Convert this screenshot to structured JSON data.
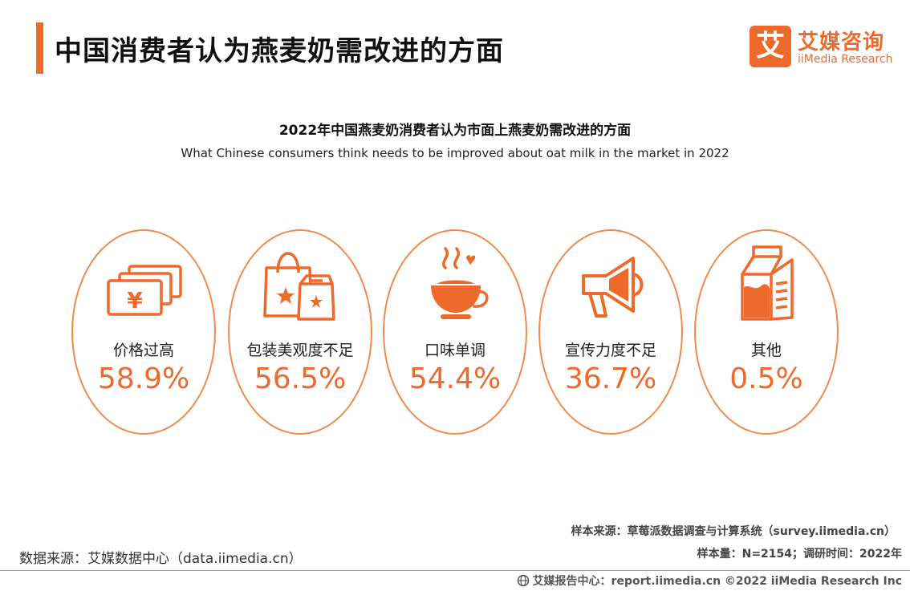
{
  "page_title": "中国消费者认为燕麦奶需改进的方面",
  "logo": {
    "glyph": "艾",
    "name_cn": "艾媒咨询",
    "name_en": "iiMedia Research"
  },
  "colors": {
    "accent": "#ee6a2c",
    "ring": "#ee8a4c"
  },
  "chart_data": {
    "type": "bar",
    "title": "2022年中国燕麦奶消费者认为市面上燕麦奶需改进的方面",
    "subtitle": "What Chinese consumers think needs to be improved about oat milk in the market in 2022",
    "unit": "%",
    "categories": [
      "价格过高",
      "包装美观度不足",
      "口味单调",
      "宣传力度不足",
      "其他"
    ],
    "values": [
      58.9,
      56.5,
      54.4,
      36.7,
      0.5
    ],
    "value_labels": [
      "58.9%",
      "56.5%",
      "54.4%",
      "36.7%",
      "0.5%"
    ],
    "icons": [
      "money-icon",
      "shopping-bag-icon",
      "coffee-cup-icon",
      "megaphone-icon",
      "milk-carton-icon"
    ]
  },
  "footer": {
    "sample_source": "样本来源：草莓派数据调查与计算系统（survey.iimedia.cn）",
    "data_source": "数据来源：艾媒数据中心（data.iimedia.cn）",
    "sample_size": "样本量：N=2154；调研时间：2022年",
    "copyright": "艾媒报告中心：report.iimedia.cn  ©2022  iiMedia Research  Inc"
  }
}
